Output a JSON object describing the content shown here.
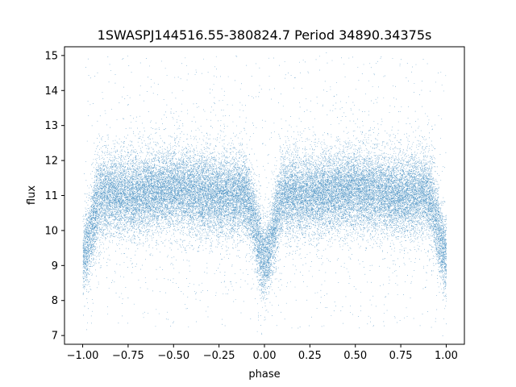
{
  "chart_data": {
    "type": "scatter",
    "title": "1SWASPJ144516.55-380824.7 Period 34890.34375s",
    "xlabel": "phase",
    "ylabel": "flux",
    "xlim": [
      -1.1,
      1.1
    ],
    "ylim": [
      6.75,
      15.25
    ],
    "x_ticks": [
      -1.0,
      -0.75,
      -0.5,
      -0.25,
      0.0,
      0.25,
      0.5,
      0.75,
      1.0
    ],
    "x_tick_labels": [
      "−1.00",
      "−0.75",
      "−0.50",
      "−0.25",
      "0.00",
      "0.25",
      "0.50",
      "0.75",
      "1.00"
    ],
    "y_ticks": [
      7,
      8,
      9,
      10,
      11,
      12,
      13,
      14,
      15
    ],
    "y_tick_labels": [
      "7",
      "8",
      "9",
      "10",
      "11",
      "12",
      "13",
      "14",
      "15"
    ],
    "grid": false,
    "marker_color": "#1f77b4",
    "phase_range": [
      -1.0,
      1.0
    ],
    "baseline_flux": 11.1,
    "scatter_sd": 0.55,
    "dips": [
      {
        "phase": -1.0,
        "depth": 1.9,
        "width": 0.045
      },
      {
        "phase": 0.0,
        "depth": 2.0,
        "width": 0.045
      },
      {
        "phase": 1.0,
        "depth": 1.9,
        "width": 0.045
      }
    ],
    "outlier_range": [
      7.2,
      15.0
    ],
    "n_points": 36000
  }
}
